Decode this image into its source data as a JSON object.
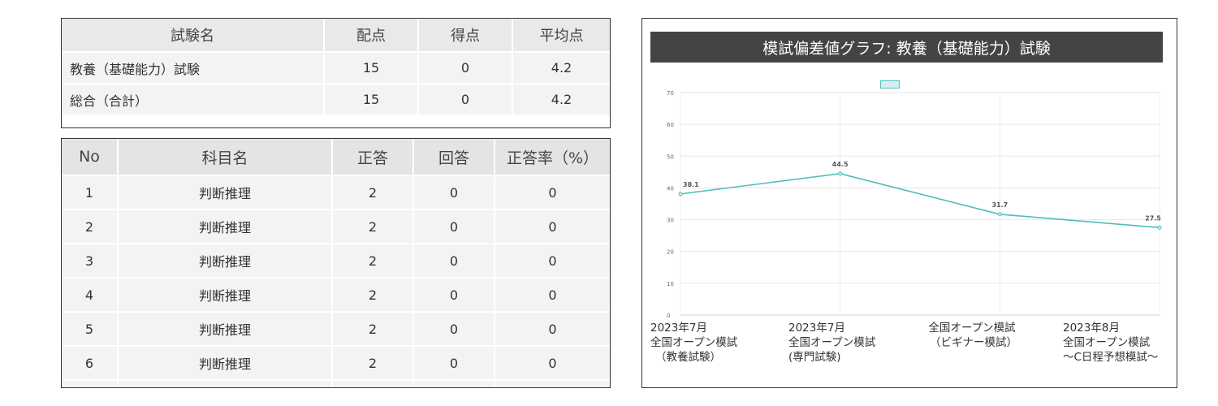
{
  "summary": {
    "headers": [
      "試験名",
      "配点",
      "得点",
      "平均点"
    ],
    "rows": [
      {
        "name": "教養（基礎能力）試験",
        "points": "15",
        "score": "0",
        "average": "4.2"
      },
      {
        "name": "総合（合計）",
        "points": "15",
        "score": "0",
        "average": "4.2"
      }
    ]
  },
  "subjects": {
    "headers": [
      "No",
      "科目名",
      "正答",
      "回答",
      "正答率（%）"
    ],
    "rows": [
      {
        "no": "1",
        "subject": "判断推理",
        "correct": "2",
        "answered": "0",
        "rate": "0"
      },
      {
        "no": "2",
        "subject": "判断推理",
        "correct": "2",
        "answered": "0",
        "rate": "0"
      },
      {
        "no": "3",
        "subject": "判断推理",
        "correct": "2",
        "answered": "0",
        "rate": "0"
      },
      {
        "no": "4",
        "subject": "判断推理",
        "correct": "2",
        "answered": "0",
        "rate": "0"
      },
      {
        "no": "5",
        "subject": "判断推理",
        "correct": "2",
        "answered": "0",
        "rate": "0"
      },
      {
        "no": "6",
        "subject": "判断推理",
        "correct": "2",
        "answered": "0",
        "rate": "0"
      }
    ]
  },
  "chart_title": "模試偏差値グラフ: 教養（基礎能力）試験",
  "chart_data": {
    "type": "line",
    "title": "模試偏差値グラフ: 教養（基礎能力）試験",
    "categories": [
      [
        "2023年7月",
        "全国オープン模試",
        "（教養試験）"
      ],
      [
        "2023年7月",
        "全国オープン模試",
        "(専門試験)"
      ],
      [
        "全国オープン模試",
        "（ビギナー模試）"
      ],
      [
        "2023年8月",
        "全国オープン模試",
        "～C日程予想模試～"
      ]
    ],
    "series": [
      {
        "values": [
          38.1,
          44.5,
          31.7,
          27.5
        ],
        "color": "#4bbfbb"
      }
    ],
    "data_labels": [
      "38.1",
      "44.5",
      "31.7",
      "27.5"
    ],
    "yticks": [
      "0",
      "10",
      "20",
      "30",
      "40",
      "50",
      "60",
      "70"
    ],
    "ylim": [
      0,
      70
    ],
    "grid": true,
    "legend": "top-center"
  }
}
